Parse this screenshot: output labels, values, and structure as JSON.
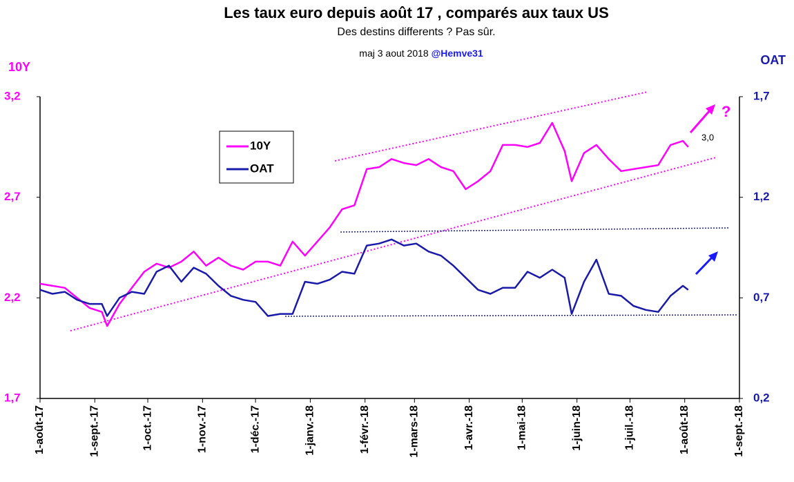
{
  "chart_data": {
    "type": "line",
    "title": "Les taux euro depuis août 17 , comparés aux taux US",
    "subtitle": "Des destins differents ?  Pas sûr.",
    "update_note": "maj 3 aout 2018 ",
    "author": "@Hemve31",
    "y_axis_title": "10Y",
    "y2_axis_title": "OAT",
    "annotations": [
      "3,0",
      "?"
    ],
    "x": [
      "2017-08-01",
      "2017-08-08",
      "2017-08-15",
      "2017-08-22",
      "2017-08-29",
      "2017-09-05",
      "2017-09-08",
      "2017-09-15",
      "2017-09-22",
      "2017-09-29",
      "2017-10-06",
      "2017-10-13",
      "2017-10-20",
      "2017-10-27",
      "2017-11-03",
      "2017-11-10",
      "2017-11-17",
      "2017-11-24",
      "2017-12-01",
      "2017-12-08",
      "2017-12-15",
      "2017-12-22",
      "2017-12-29",
      "2018-01-05",
      "2018-01-12",
      "2018-01-19",
      "2018-01-26",
      "2018-02-02",
      "2018-02-09",
      "2018-02-16",
      "2018-02-23",
      "2018-03-02",
      "2018-03-09",
      "2018-03-16",
      "2018-03-23",
      "2018-03-30",
      "2018-04-06",
      "2018-04-13",
      "2018-04-20",
      "2018-04-27",
      "2018-05-04",
      "2018-05-11",
      "2018-05-18",
      "2018-05-25",
      "2018-05-29",
      "2018-06-05",
      "2018-06-12",
      "2018-06-19",
      "2018-06-26",
      "2018-07-03",
      "2018-07-10",
      "2018-07-17",
      "2018-07-24",
      "2018-07-31",
      "2018-08-03"
    ],
    "series": [
      {
        "name": "10Y",
        "color": "#ff00ff",
        "values": [
          2.27,
          2.26,
          2.25,
          2.2,
          2.15,
          2.13,
          2.06,
          2.17,
          2.25,
          2.33,
          2.37,
          2.35,
          2.38,
          2.43,
          2.36,
          2.4,
          2.36,
          2.34,
          2.38,
          2.38,
          2.36,
          2.48,
          2.41,
          2.48,
          2.55,
          2.64,
          2.66,
          2.84,
          2.85,
          2.89,
          2.87,
          2.86,
          2.89,
          2.85,
          2.83,
          2.74,
          2.78,
          2.83,
          2.96,
          2.96,
          2.95,
          2.97,
          3.07,
          2.93,
          2.78,
          2.92,
          2.96,
          2.89,
          2.83,
          2.84,
          2.85,
          2.86,
          2.96,
          2.98,
          2.95
        ]
      },
      {
        "name": "OAT",
        "color": "#1a1aaa",
        "axis": "y2",
        "values": [
          0.74,
          0.72,
          0.73,
          0.69,
          0.67,
          0.67,
          0.61,
          0.7,
          0.73,
          0.72,
          0.83,
          0.86,
          0.78,
          0.85,
          0.82,
          0.76,
          0.71,
          0.69,
          0.68,
          0.61,
          0.62,
          0.62,
          0.78,
          0.77,
          0.79,
          0.83,
          0.82,
          0.96,
          0.97,
          0.99,
          0.96,
          0.97,
          0.93,
          0.91,
          0.86,
          0.8,
          0.74,
          0.72,
          0.75,
          0.75,
          0.83,
          0.8,
          0.84,
          0.8,
          0.62,
          0.78,
          0.89,
          0.72,
          0.71,
          0.66,
          0.64,
          0.63,
          0.71,
          0.76,
          0.74
        ]
      }
    ],
    "xlim": [
      "2017-08-01",
      "2018-09-01"
    ],
    "xticks": [
      {
        "value": "2017-08-01",
        "label": "1-août-17"
      },
      {
        "value": "2017-09-01",
        "label": "1-sept.-17"
      },
      {
        "value": "2017-10-01",
        "label": "1-oct.-17"
      },
      {
        "value": "2017-11-01",
        "label": "1-nov.-17"
      },
      {
        "value": "2017-12-01",
        "label": "1-déc.-17"
      },
      {
        "value": "2018-01-01",
        "label": "1-janv.-18"
      },
      {
        "value": "2018-02-01",
        "label": "1-févr.-18"
      },
      {
        "value": "2018-03-01",
        "label": "1-mars-18"
      },
      {
        "value": "2018-04-01",
        "label": "1-avr.-18"
      },
      {
        "value": "2018-05-01",
        "label": "1-mai-18"
      },
      {
        "value": "2018-06-01",
        "label": "1-juin-18"
      },
      {
        "value": "2018-07-01",
        "label": "1-juil.-18"
      },
      {
        "value": "2018-08-01",
        "label": "1-août-18"
      },
      {
        "value": "2018-09-01",
        "label": "1-sept.-18"
      }
    ],
    "ylim": [
      1.7,
      3.2
    ],
    "yticks": [
      {
        "value": 1.7,
        "label": "1,7"
      },
      {
        "value": 2.2,
        "label": "2,2"
      },
      {
        "value": 2.7,
        "label": "2,7"
      },
      {
        "value": 3.2,
        "label": "3,2"
      }
    ],
    "y2lim": [
      0.2,
      1.7
    ],
    "y2ticks": [
      {
        "value": 0.2,
        "label": "0,2"
      },
      {
        "value": 0.7,
        "label": "0,7"
      },
      {
        "value": 1.2,
        "label": "1,2"
      },
      {
        "value": 1.7,
        "label": "1,7"
      }
    ],
    "grid": false
  }
}
